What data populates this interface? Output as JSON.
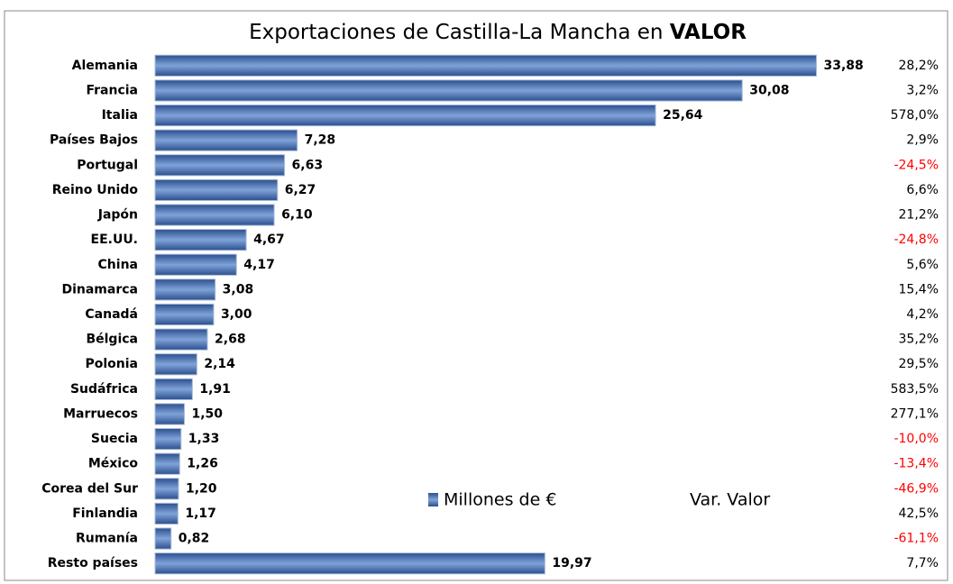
{
  "chart_data": {
    "type": "bar",
    "orientation": "horizontal",
    "title": "Exportaciones de Castilla-La Mancha en",
    "title_emphasis": "VALOR",
    "categories": [
      "Alemania",
      "Francia",
      "Italia",
      "Países Bajos",
      "Portugal",
      "Reino Unido",
      "Japón",
      "EE.UU.",
      "China",
      "Dinamarca",
      "Canadá",
      "Bélgica",
      "Polonia",
      "Sudáfrica",
      "Marruecos",
      "Suecia",
      "México",
      "Corea del Sur",
      "Finlandia",
      "Rumanía",
      "Resto países"
    ],
    "xlim": [
      0,
      40
    ],
    "series": [
      {
        "name": "Millones de €",
        "color": "#3b64a8",
        "values": [
          33.88,
          30.08,
          25.64,
          7.28,
          6.63,
          6.27,
          6.1,
          4.67,
          4.17,
          3.08,
          3.0,
          2.68,
          2.14,
          1.91,
          1.5,
          1.33,
          1.26,
          1.2,
          1.17,
          0.82,
          19.97
        ],
        "value_labels": [
          "33,88",
          "30,08",
          "25,64",
          "7,28",
          "6,63",
          "6,27",
          "6,10",
          "4,67",
          "4,17",
          "3,08",
          "3,00",
          "2,68",
          "2,14",
          "1,91",
          "1,50",
          "1,33",
          "1,26",
          "1,20",
          "1,17",
          "0,82",
          "19,97"
        ]
      },
      {
        "name": "Var. Valor",
        "color": "#000000",
        "negative_color": "#ff0000",
        "values": [
          28.2,
          3.2,
          578.0,
          2.9,
          -24.5,
          6.6,
          21.2,
          -24.8,
          5.6,
          15.4,
          4.2,
          35.2,
          29.5,
          583.5,
          277.1,
          -10.0,
          -13.4,
          -46.9,
          42.5,
          -61.1,
          7.7
        ],
        "value_labels": [
          "28,2%",
          "3,2%",
          "578,0%",
          "2,9%",
          "-24,5%",
          "6,6%",
          "21,2%",
          "-24,8%",
          "5,6%",
          "15,4%",
          "4,2%",
          "35,2%",
          "29,5%",
          "583,5%",
          "277,1%",
          "-10,0%",
          "-13,4%",
          "-46,9%",
          "42,5%",
          "-61,1%",
          "7,7%"
        ]
      }
    ]
  }
}
